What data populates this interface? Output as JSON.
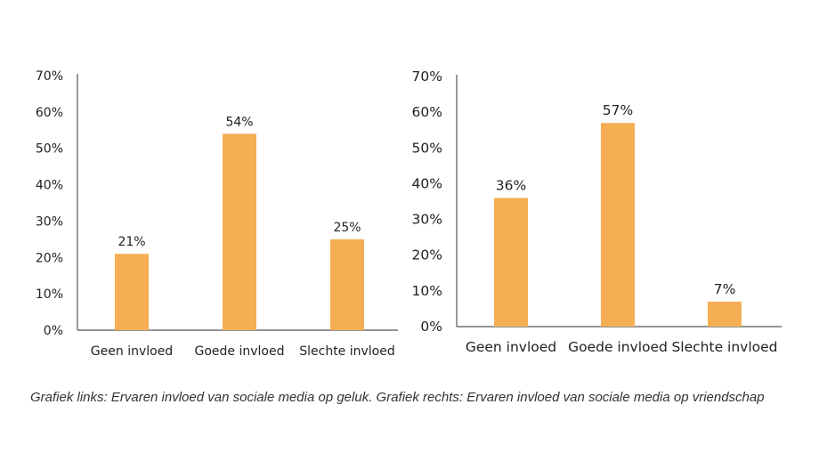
{
  "chart_data": [
    {
      "type": "bar",
      "categories": [
        "Geen invloed",
        "Goede invloed",
        "Slechte invloed"
      ],
      "values": [
        21,
        54,
        25
      ],
      "data_labels": [
        "21%",
        "54%",
        "25%"
      ],
      "yticks": [
        "0%",
        "10%",
        "20%",
        "30%",
        "40%",
        "50%",
        "60%",
        "70%"
      ],
      "ylim": [
        0,
        70
      ],
      "bar_color": "#F5AE54",
      "grid": false
    },
    {
      "type": "bar",
      "categories": [
        "Geen invloed",
        "Goede invloed",
        "Slechte invloed"
      ],
      "values": [
        36,
        57,
        7
      ],
      "data_labels": [
        "36%",
        "57%",
        "7%"
      ],
      "yticks": [
        "0%",
        "10%",
        "20%",
        "30%",
        "40%",
        "50%",
        "60%",
        "70%"
      ],
      "ylim": [
        0,
        70
      ],
      "bar_color": "#F5AE54",
      "grid": false
    }
  ],
  "caption": "Grafiek links: Ervaren invloed van sociale media op geluk. Grafiek rechts: Ervaren invloed van sociale media op vriendschap"
}
